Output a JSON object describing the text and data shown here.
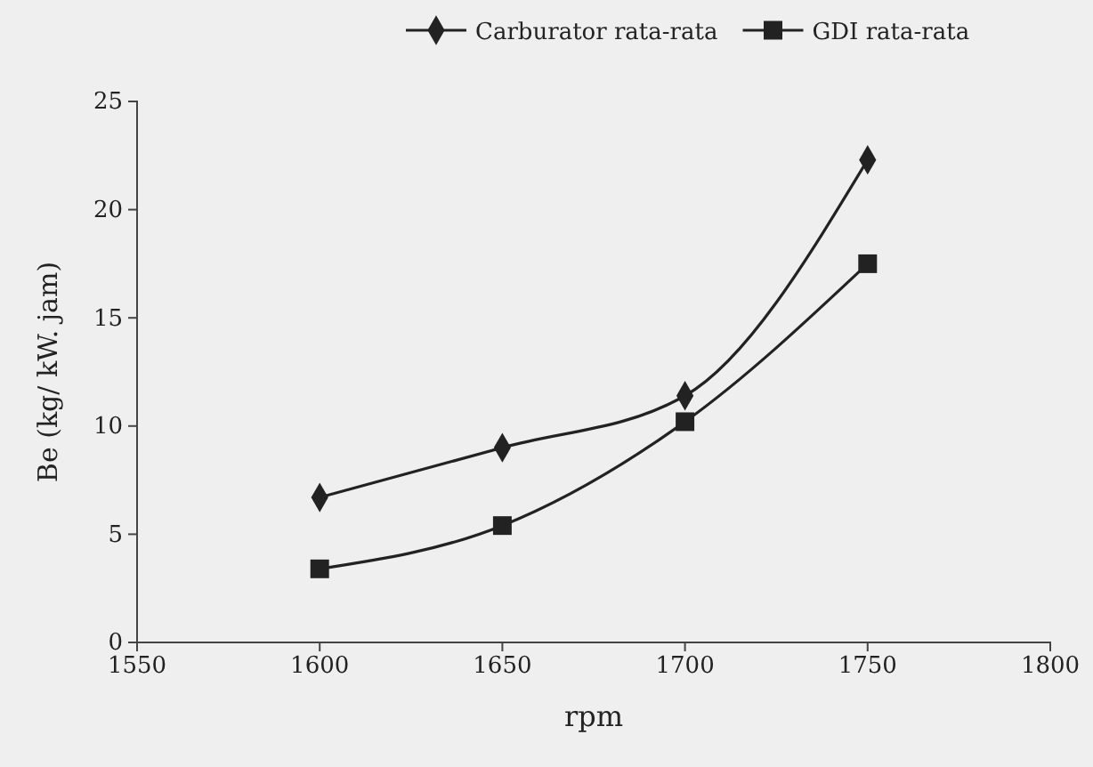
{
  "chart_data": {
    "type": "line",
    "xlabel": "rpm",
    "ylabel": "Be (kg/ kW. jam)",
    "x": [
      1600,
      1650,
      1700,
      1750
    ],
    "series": [
      {
        "name": "Carburator rata-rata",
        "color": "#222222",
        "marker": "diamond",
        "values": [
          6.7,
          9.0,
          11.4,
          22.3
        ]
      },
      {
        "name": "GDI rata-rata",
        "color": "#222222",
        "marker": "square",
        "values": [
          3.4,
          5.4,
          10.2,
          17.5
        ]
      }
    ],
    "xlim": [
      1550,
      1800
    ],
    "xticks": [
      1550,
      1600,
      1650,
      1700,
      1750,
      1800
    ],
    "ylim": [
      0,
      25
    ],
    "yticks": [
      0,
      5,
      10,
      15,
      20,
      25
    ],
    "grid": false,
    "legend": "top right",
    "line_style": "solid"
  }
}
